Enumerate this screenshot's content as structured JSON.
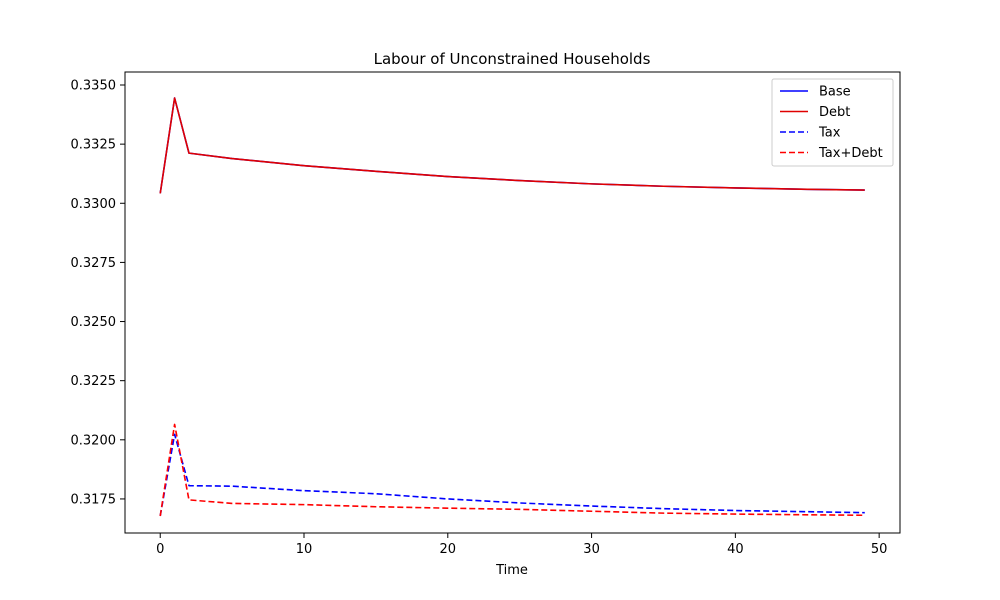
{
  "chart_data": {
    "type": "line",
    "title": "Labour of Unconstrained Households",
    "xlabel": "Time",
    "ylabel": "",
    "xlim": [
      -2.45,
      51.45
    ],
    "ylim": [
      0.31606,
      0.33555
    ],
    "xticks": [
      0,
      10,
      20,
      30,
      40,
      50
    ],
    "xtick_labels": [
      "0",
      "10",
      "20",
      "30",
      "40",
      "50"
    ],
    "yticks": [
      0.3175,
      0.32,
      0.3225,
      0.325,
      0.3275,
      0.33,
      0.3325,
      0.335
    ],
    "ytick_labels": [
      "0.3175",
      "0.3200",
      "0.3225",
      "0.3250",
      "0.3275",
      "0.3300",
      "0.3325",
      "0.3350"
    ],
    "grid": false,
    "legend_position": "top-right",
    "series": [
      {
        "name": "Base",
        "color": "#0000ff",
        "style": "solid",
        "x": [
          0,
          1,
          2,
          5,
          10,
          15,
          20,
          25,
          30,
          35,
          40,
          45,
          49
        ],
        "y": [
          0.33042,
          0.33445,
          0.33212,
          0.33189,
          0.33159,
          0.33135,
          0.33113,
          0.33096,
          0.33082,
          0.33072,
          0.33065,
          0.33059,
          0.33056
        ]
      },
      {
        "name": "Debt",
        "color": "#e00000",
        "style": "solid",
        "x": [
          0,
          1,
          2,
          5,
          10,
          15,
          20,
          25,
          30,
          35,
          40,
          45,
          49
        ],
        "y": [
          0.33042,
          0.33445,
          0.33212,
          0.33189,
          0.33159,
          0.33135,
          0.33113,
          0.33096,
          0.33082,
          0.33072,
          0.33065,
          0.33059,
          0.33056
        ]
      },
      {
        "name": "Tax",
        "color": "#0000ff",
        "style": "dashed",
        "x": [
          0,
          1,
          2,
          5,
          10,
          15,
          20,
          25,
          30,
          35,
          40,
          45,
          49
        ],
        "y": [
          0.31678,
          0.32023,
          0.31806,
          0.31804,
          0.31785,
          0.31772,
          0.3175,
          0.31733,
          0.3172,
          0.31709,
          0.31701,
          0.31696,
          0.31692
        ]
      },
      {
        "name": "Tax+Debt",
        "color": "#ff0000",
        "style": "dashed",
        "x": [
          0,
          1,
          2,
          5,
          10,
          15,
          20,
          25,
          30,
          35,
          40,
          45,
          49
        ],
        "y": [
          0.31678,
          0.32065,
          0.31746,
          0.31731,
          0.31726,
          0.31717,
          0.31711,
          0.31706,
          0.31698,
          0.3169,
          0.31686,
          0.31683,
          0.31681
        ]
      }
    ]
  }
}
